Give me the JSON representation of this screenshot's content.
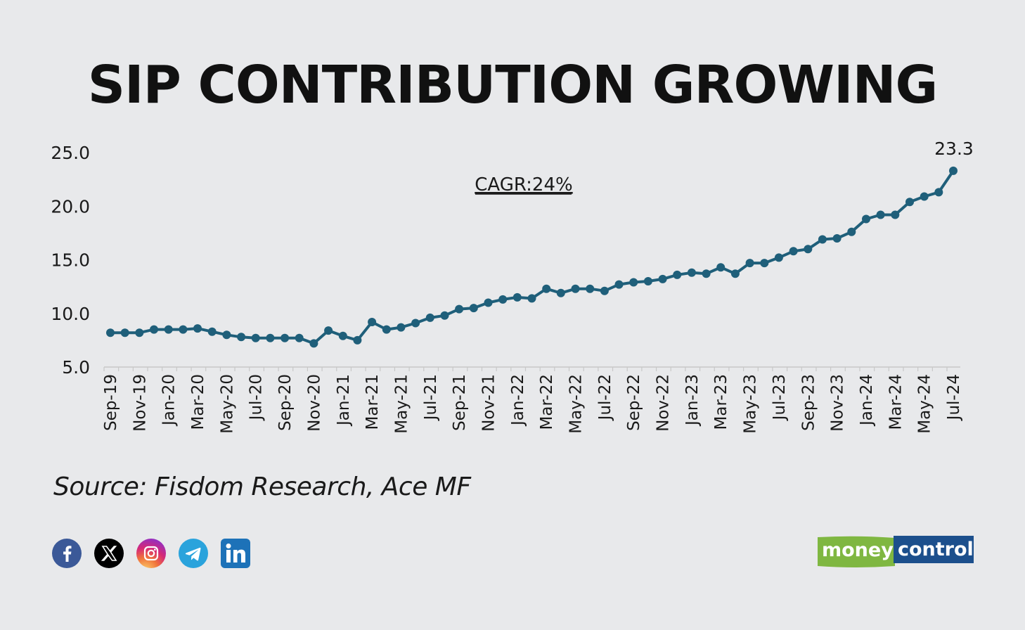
{
  "title": "SIP CONTRIBUTION GROWING",
  "source": "Source: Fisdom Research, Ace MF",
  "annotation": "CAGR:24%",
  "last_value_label": "23.3",
  "colors": {
    "line": "#1f5f7a",
    "background": "#e8e9eb",
    "text": "#111111"
  },
  "social_icons": [
    "facebook-icon",
    "x-icon",
    "instagram-icon",
    "telegram-icon",
    "linkedin-icon"
  ],
  "logo": {
    "part1": "money",
    "part2": "control"
  },
  "chart_data": {
    "type": "line",
    "title": "SIP CONTRIBUTION GROWING",
    "xlabel": "",
    "ylabel": "",
    "ylim": [
      5.0,
      25.0
    ],
    "yticks": [
      "5.0",
      "10.0",
      "15.0",
      "20.0",
      "25.0"
    ],
    "grid": false,
    "x": [
      "Sep-19",
      "Oct-19",
      "Nov-19",
      "Dec-19",
      "Jan-20",
      "Feb-20",
      "Mar-20",
      "Apr-20",
      "May-20",
      "Jun-20",
      "Jul-20",
      "Aug-20",
      "Sep-20",
      "Oct-20",
      "Nov-20",
      "Dec-20",
      "Jan-21",
      "Feb-21",
      "Mar-21",
      "Apr-21",
      "May-21",
      "Jun-21",
      "Jul-21",
      "Aug-21",
      "Sep-21",
      "Oct-21",
      "Nov-21",
      "Dec-21",
      "Jan-22",
      "Feb-22",
      "Mar-22",
      "Apr-22",
      "May-22",
      "Jun-22",
      "Jul-22",
      "Aug-22",
      "Sep-22",
      "Oct-22",
      "Nov-22",
      "Dec-22",
      "Jan-23",
      "Feb-23",
      "Mar-23",
      "Apr-23",
      "May-23",
      "Jun-23",
      "Jul-23",
      "Aug-23",
      "Sep-23",
      "Oct-23",
      "Nov-23",
      "Dec-23",
      "Jan-24",
      "Feb-24",
      "Mar-24",
      "Apr-24",
      "May-24",
      "Jun-24",
      "Jul-24"
    ],
    "xtick_labels": [
      "Sep-19",
      "Nov-19",
      "Jan-20",
      "Mar-20",
      "May-20",
      "Jul-20",
      "Sep-20",
      "Nov-20",
      "Jan-21",
      "Mar-21",
      "May-21",
      "Jul-21",
      "Sep-21",
      "Nov-21",
      "Jan-22",
      "Mar-22",
      "May-22",
      "Jul-22",
      "Sep-22",
      "Nov-22",
      "Jan-23",
      "Mar-23",
      "May-23",
      "Jul-23",
      "Sep-23",
      "Nov-23",
      "Jan-24",
      "Mar-24",
      "May-24",
      "Jul-24"
    ],
    "series": [
      {
        "values": [
          8.2,
          8.2,
          8.2,
          8.5,
          8.5,
          8.5,
          8.6,
          8.3,
          8.0,
          7.8,
          7.7,
          7.7,
          7.7,
          7.7,
          7.2,
          8.4,
          7.9,
          7.5,
          9.2,
          8.5,
          8.7,
          9.1,
          9.6,
          9.8,
          10.4,
          10.5,
          11.0,
          11.3,
          11.5,
          11.4,
          12.3,
          11.9,
          12.3,
          12.3,
          12.1,
          12.7,
          12.9,
          13.0,
          13.2,
          13.6,
          13.8,
          13.7,
          14.3,
          13.7,
          14.7,
          14.7,
          15.2,
          15.8,
          16.0,
          16.9,
          17.0,
          17.6,
          18.8,
          19.2,
          19.2,
          20.4,
          20.9,
          21.3,
          23.3
        ]
      }
    ]
  }
}
